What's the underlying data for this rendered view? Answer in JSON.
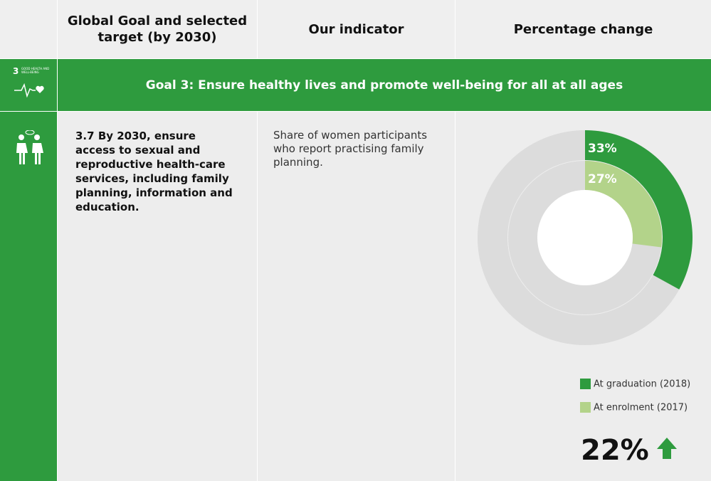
{
  "header": [
    "Global Goal and selected target (by 2030)",
    "Our indicator",
    "Percentage change"
  ],
  "goal": {
    "number": "3",
    "icon_label": "GOOD HEALTH AND WELL-BEING",
    "title": "Goal 3: Ensure healthy lives and promote well-being for all at all ages"
  },
  "target": {
    "number": "3.7",
    "text": "By 2030, ensure access to sexual and reproductive health-care services, including family planning, information and education."
  },
  "indicator": "Share of women participants who report practising family planning.",
  "chart_data": {
    "type": "donut",
    "track_color": "#dcdcdc",
    "series": [
      {
        "name": "At graduation (2018)",
        "color": "#2e9b3e",
        "values": [
          33
        ],
        "value_labels": [
          "33%"
        ]
      },
      {
        "name": "At enrolment (2017)",
        "color": "#b3d38a",
        "values": [
          27
        ],
        "value_labels": [
          "27%"
        ]
      }
    ]
  },
  "change": "22%"
}
